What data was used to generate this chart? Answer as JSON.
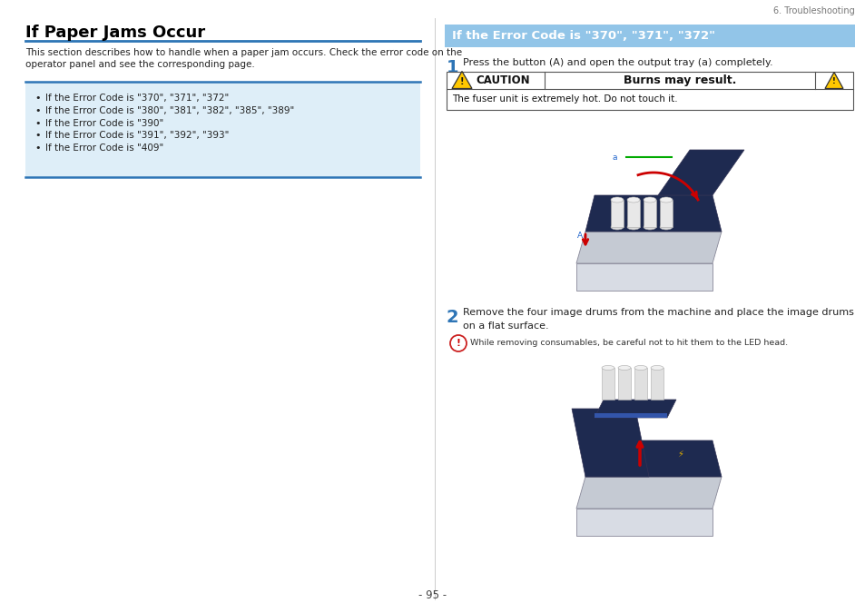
{
  "page_bg": "#ffffff",
  "divider_color": "#2e75b6",
  "header_bg": "#92c5e8",
  "header_text_color": "#ffffff",
  "left_title": "If Paper Jams Occur",
  "right_header": "If the Error Code is \"370\", \"371\", \"372\"",
  "top_right_label": "6. Troubleshooting",
  "left_body_line1": "This section describes how to handle when a paper jam occurs. Check the error code on the",
  "left_body_line2": "operator panel and see the corresponding page.",
  "bullet_items": [
    "If the Error Code is \"370\", \"371\", \"372\"",
    "If the Error Code is \"380\", \"381\", \"382\", \"385\", \"389\"",
    "If the Error Code is \"390\"",
    "If the Error Code is \"391\", \"392\", \"393\"",
    "If the Error Code is \"409\""
  ],
  "step1_text": "Press the button (A) and open the output tray (a) completely.",
  "step_num_color": "#2e75b6",
  "caution_main": "Burns may result.",
  "caution_sub": "The fuser unit is extremely hot. Do not touch it.",
  "step2_line1": "Remove the four image drums from the machine and place the image drums",
  "step2_line2": "on a flat surface.",
  "note_text": "While removing consumables, be careful not to hit them to the LED head.",
  "page_number": "- 95 -",
  "bullet_box_bg": "#deeef8",
  "printer_body_color": "#c8cdd6",
  "printer_dark_color": "#2a3560",
  "printer_light_color": "#e0e4ea"
}
